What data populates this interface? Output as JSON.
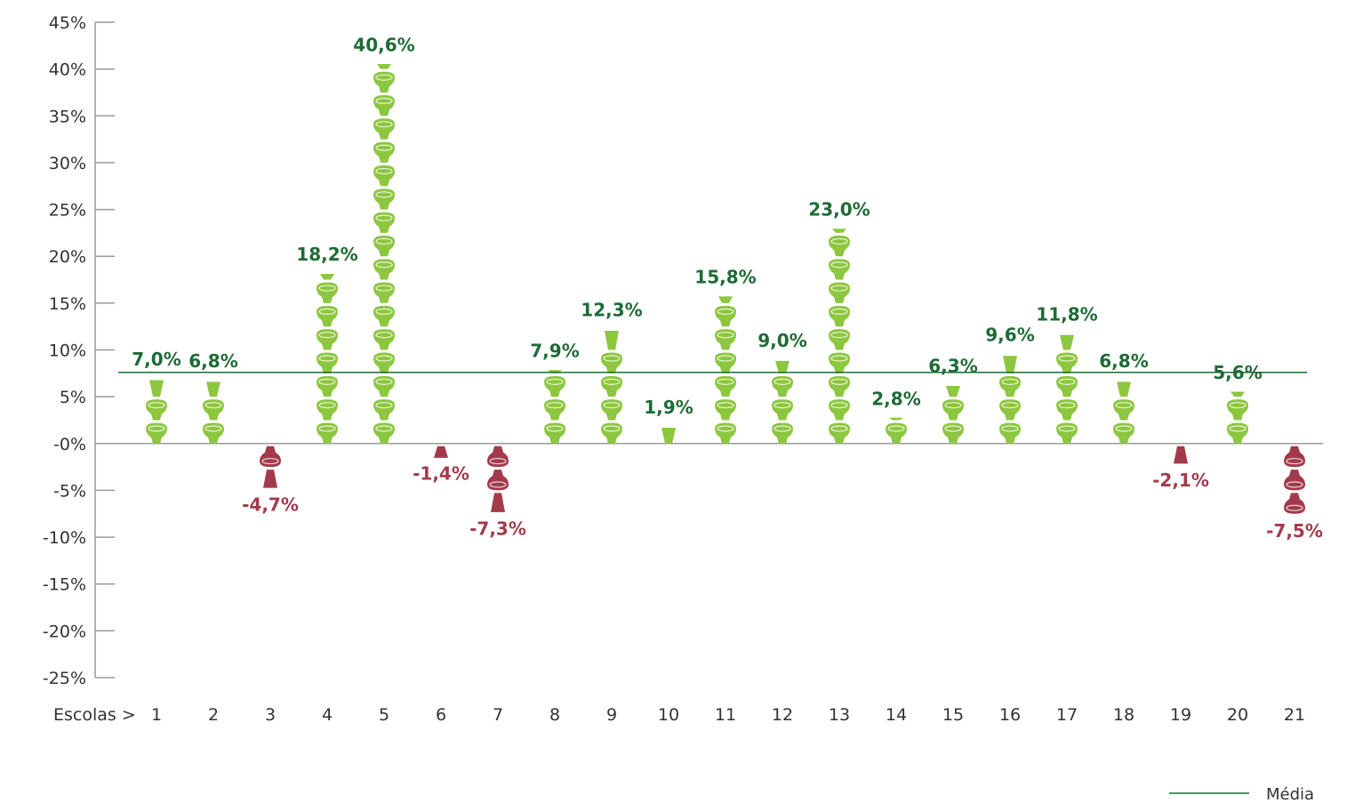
{
  "chart_data": {
    "type": "bar",
    "xlabel": "Escolas >",
    "categories": [
      "1",
      "2",
      "3",
      "4",
      "5",
      "6",
      "7",
      "8",
      "9",
      "10",
      "11",
      "12",
      "13",
      "14",
      "15",
      "16",
      "17",
      "18",
      "19",
      "20",
      "21"
    ],
    "values": [
      7.0,
      6.8,
      -4.7,
      18.2,
      40.6,
      -1.4,
      -7.3,
      7.9,
      12.3,
      1.9,
      15.8,
      9.0,
      23.0,
      2.8,
      6.3,
      9.6,
      11.8,
      6.8,
      -2.1,
      5.6,
      -7.5
    ],
    "value_labels": [
      "7,0%",
      "6,8%",
      "-4,7%",
      "18,2%",
      "40,6%",
      "-1,4%",
      "-7,3%",
      "7,9%",
      "12,3%",
      "1,9%",
      "15,8%",
      "9,0%",
      "23,0%",
      "2,8%",
      "6,3%",
      "9,6%",
      "11,8%",
      "6,8%",
      "-2,1%",
      "5,6%",
      "-7,5%"
    ],
    "yticks": [
      "45%",
      "40%",
      "35%",
      "30%",
      "25%",
      "20%",
      "15%",
      "10%",
      "5%",
      "-0%",
      "-5%",
      "-10%",
      "-15%",
      "-20%",
      "-25%"
    ],
    "ylim": [
      -25,
      45
    ],
    "mean": 7.6,
    "legend": {
      "label": "Média",
      "position": "bottom-right"
    },
    "colors": {
      "positive_icon": "#8dc63f",
      "positive_label": "#1e6b35",
      "negative_icon": "#a33a4c",
      "negative_label": "#a33a4c",
      "mean_line": "#1e6b35",
      "axis": "#9a9a9a"
    },
    "icon": "bulb-icon",
    "grid": false
  }
}
